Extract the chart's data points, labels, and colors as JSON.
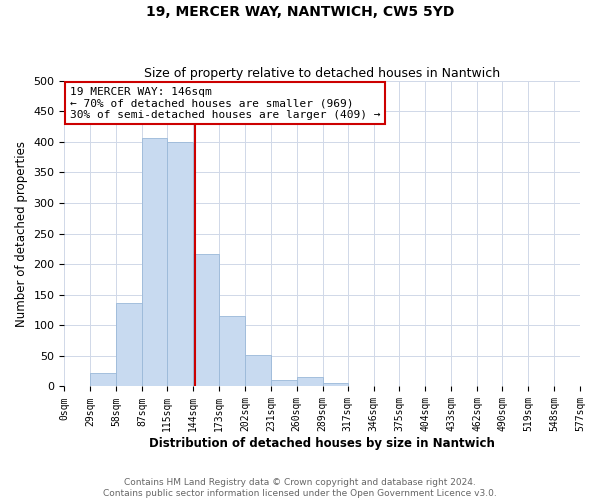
{
  "title": "19, MERCER WAY, NANTWICH, CW5 5YD",
  "subtitle": "Size of property relative to detached houses in Nantwich",
  "xlabel": "Distribution of detached houses by size in Nantwich",
  "ylabel": "Number of detached properties",
  "bin_edges": [
    0,
    29,
    58,
    87,
    115,
    144,
    173,
    202,
    231,
    260,
    289,
    317,
    346,
    375,
    404,
    433,
    462,
    490,
    519,
    548,
    577
  ],
  "bin_heights": [
    0,
    22,
    137,
    407,
    400,
    216,
    115,
    52,
    11,
    16,
    5,
    0,
    0,
    0,
    0,
    0,
    1,
    0,
    0,
    1
  ],
  "bar_color": "#c8daf0",
  "bar_edge_color": "#9ab8d8",
  "property_line_x": 146,
  "property_line_color": "#cc0000",
  "annotation_title": "19 MERCER WAY: 146sqm",
  "annotation_line1": "← 70% of detached houses are smaller (969)",
  "annotation_line2": "30% of semi-detached houses are larger (409) →",
  "annotation_box_color": "#ffffff",
  "annotation_box_edgecolor": "#cc0000",
  "ylim": [
    0,
    500
  ],
  "xlim": [
    0,
    577
  ],
  "tick_labels": [
    "0sqm",
    "29sqm",
    "58sqm",
    "87sqm",
    "115sqm",
    "144sqm",
    "173sqm",
    "202sqm",
    "231sqm",
    "260sqm",
    "289sqm",
    "317sqm",
    "346sqm",
    "375sqm",
    "404sqm",
    "433sqm",
    "462sqm",
    "490sqm",
    "519sqm",
    "548sqm",
    "577sqm"
  ],
  "tick_positions": [
    0,
    29,
    58,
    87,
    115,
    144,
    173,
    202,
    231,
    260,
    289,
    317,
    346,
    375,
    404,
    433,
    462,
    490,
    519,
    548,
    577
  ],
  "ytick_positions": [
    0,
    50,
    100,
    150,
    200,
    250,
    300,
    350,
    400,
    450,
    500
  ],
  "footer1": "Contains HM Land Registry data © Crown copyright and database right 2024.",
  "footer2": "Contains public sector information licensed under the Open Government Licence v3.0.",
  "bg_color": "#ffffff",
  "grid_color": "#d0d8e8",
  "title_fontsize": 10,
  "subtitle_fontsize": 9,
  "axis_label_fontsize": 8.5,
  "tick_fontsize": 7,
  "footer_fontsize": 6.5,
  "annotation_fontsize": 8,
  "annotation_title_fontsize": 9
}
